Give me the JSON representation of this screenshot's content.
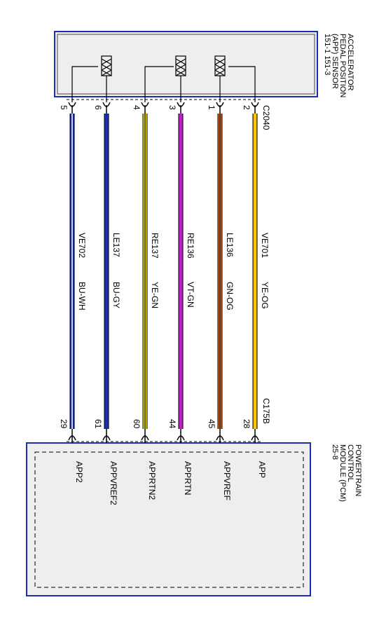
{
  "sensor": {
    "title": [
      "ACCELERATOR",
      "PEDAL POSITION",
      "(APP) SENSOR",
      "151-1   151-3"
    ],
    "connector": "C2040"
  },
  "pcm": {
    "title": [
      "POWERTRAIN",
      "CONTROL",
      "MODULE (PCM)",
      "25-8"
    ],
    "connector": "C175B"
  },
  "wires": [
    {
      "pin_top": "5",
      "circuit": "VE702",
      "color": "BU-WH",
      "pin_bottom": "29",
      "signal": "APP2"
    },
    {
      "pin_top": "6",
      "circuit": "LE137",
      "color": "BU-GY",
      "pin_bottom": "61",
      "signal": "APPVREF2"
    },
    {
      "pin_top": "4",
      "circuit": "RE137",
      "color": "YE-GN",
      "pin_bottom": "60",
      "signal": "APPRTN2"
    },
    {
      "pin_top": "3",
      "circuit": "RE136",
      "color": "VT-GN",
      "pin_bottom": "44",
      "signal": "APPRTN"
    },
    {
      "pin_top": "1",
      "circuit": "LE136",
      "color": "GN-OG",
      "pin_bottom": "45",
      "signal": "APPVREF"
    },
    {
      "pin_top": "2",
      "circuit": "VE701",
      "color": "YE-OG",
      "pin_bottom": "28",
      "signal": "APP"
    }
  ]
}
